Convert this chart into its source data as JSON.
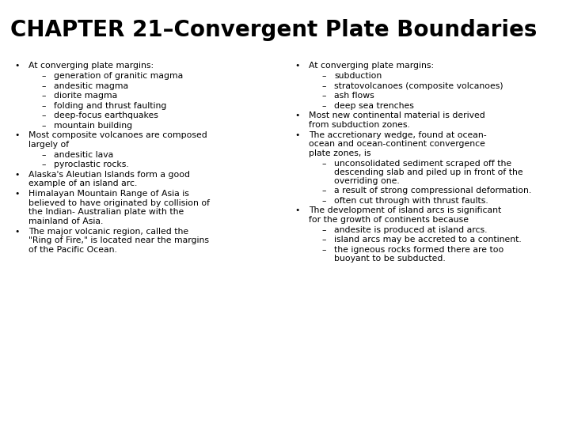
{
  "title": "CHAPTER 21–Convergent Plate Boundaries",
  "bg_color": "#ffffff",
  "title_color": "#000000",
  "title_fontsize": 20,
  "body_fontsize": 7.8,
  "font_family": "Courier New",
  "left_column": {
    "bullets": [
      {
        "level": 1,
        "text": "At converging plate margins:"
      },
      {
        "level": 2,
        "text": "generation of granitic magma"
      },
      {
        "level": 2,
        "text": "andesitic magma"
      },
      {
        "level": 2,
        "text": "diorite magma"
      },
      {
        "level": 2,
        "text": "folding and thrust faulting"
      },
      {
        "level": 2,
        "text": "deep-focus earthquakes"
      },
      {
        "level": 2,
        "text": "mountain building"
      },
      {
        "level": 1,
        "text": "Most composite volcanoes are composed\nlargely of"
      },
      {
        "level": 2,
        "text": "andesitic lava"
      },
      {
        "level": 2,
        "text": "pyroclastic rocks."
      },
      {
        "level": 1,
        "text": "Alaska's Aleutian Islands form a good\nexample of an island arc."
      },
      {
        "level": 1,
        "text": "Himalayan Mountain Range of Asia is\nbelieved to have originated by collision of\nthe Indian- Australian plate with the\nmainland of Asia."
      },
      {
        "level": 1,
        "text": "The major volcanic region, called the\n\"Ring of Fire,\" is located near the margins\nof the Pacific Ocean."
      }
    ]
  },
  "right_column": {
    "bullets": [
      {
        "level": 1,
        "text": "At converging plate margins:"
      },
      {
        "level": 2,
        "text": "subduction"
      },
      {
        "level": 2,
        "text": "stratovolcanoes (composite volcanoes)"
      },
      {
        "level": 2,
        "text": "ash flows"
      },
      {
        "level": 2,
        "text": "deep sea trenches"
      },
      {
        "level": 1,
        "text": "Most new continental material is derived\nfrom subduction zones."
      },
      {
        "level": 1,
        "text": "The accretionary wedge, found at ocean-\nocean and ocean-continent convergence\nplate zones, is"
      },
      {
        "level": 2,
        "text": "unconsolidated sediment scraped off the\ndescending slab and piled up in front of the\noverriding one."
      },
      {
        "level": 2,
        "text": "a result of strong compressional deformation."
      },
      {
        "level": 2,
        "text": "often cut through with thrust faults."
      },
      {
        "level": 1,
        "text": "The development of island arcs is significant\nfor the growth of continents because"
      },
      {
        "level": 2,
        "text": "andesite is produced at island arcs."
      },
      {
        "level": 2,
        "text": "island arcs may be accreted to a continent."
      },
      {
        "level": 2,
        "text": "the igneous rocks formed there are too\nbuoyant to be subducted."
      }
    ]
  }
}
